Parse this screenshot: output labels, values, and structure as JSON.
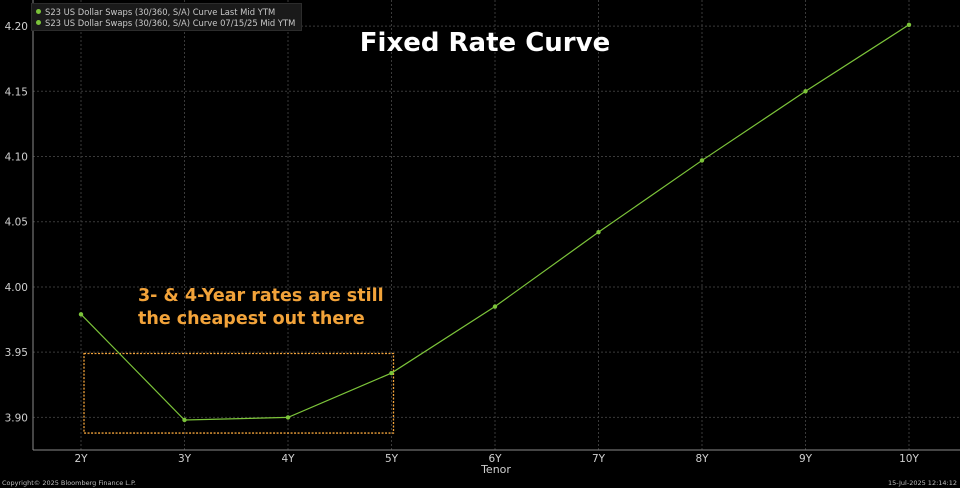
{
  "chart_data": {
    "type": "line",
    "title": "Fixed Rate Curve",
    "xlabel": "Tenor",
    "ylabel": "",
    "categories": [
      "2Y",
      "3Y",
      "4Y",
      "5Y",
      "6Y",
      "7Y",
      "8Y",
      "9Y",
      "10Y"
    ],
    "series": [
      {
        "name": "S23 US Dollar Swaps (30/360, S/A) Curve Last Mid YTM",
        "color": "#7cc43a",
        "values": [
          3.979,
          3.898,
          3.9,
          3.934,
          3.985,
          4.042,
          4.097,
          4.15,
          4.201
        ]
      }
    ],
    "legend_entries": [
      {
        "label": "S23 US Dollar Swaps (30/360, S/A) Curve Last Mid YTM",
        "color": "#7cc43a"
      },
      {
        "label": "S23 US Dollar Swaps (30/360, S/A) Curve 07/15/25 Mid YTM",
        "color": "#7cc43a"
      }
    ],
    "yticks": [
      3.9,
      3.95,
      4.0,
      4.05,
      4.1,
      4.15,
      4.2
    ],
    "ylim": [
      3.875,
      4.22
    ],
    "grid": true,
    "legend_position": "top-left",
    "annotation": {
      "lines": [
        "3- & 4-Year rates are still",
        "the cheapest out there"
      ],
      "color": "#f2a33a",
      "highlight_range": {
        "x_from": "2Y",
        "x_to": "5Y",
        "y_from": 3.888,
        "y_to": 3.949
      }
    }
  },
  "footer": {
    "copyright": "Copyright© 2025 Bloomberg Finance L.P.",
    "timestamp": "15-Jul-2025 12:14:12"
  },
  "colors": {
    "background": "#000000",
    "grid": "#3a3a3a",
    "line": "#7cc43a",
    "annotation": "#f2a33a"
  }
}
